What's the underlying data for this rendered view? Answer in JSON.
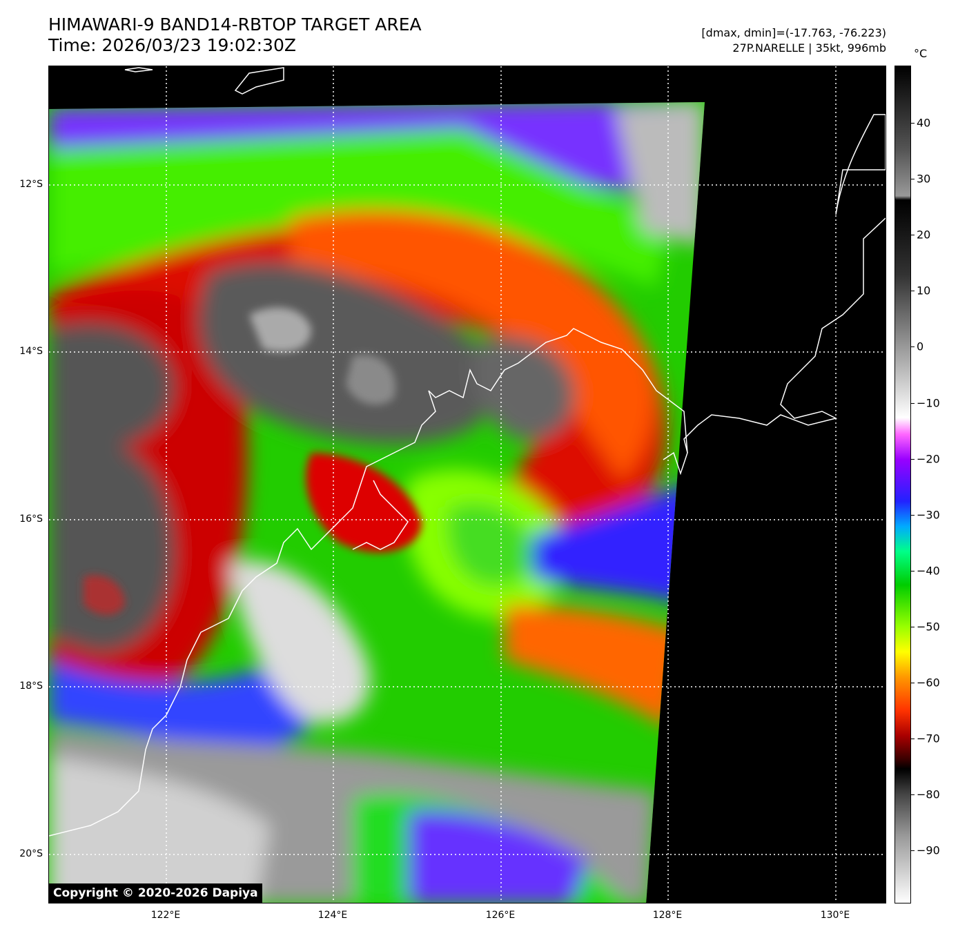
{
  "title": {
    "line1": "HIMAWARI-9 BAND14-RBTOP TARGET AREA",
    "line2": "Time: 2026/03/23 19:02:30Z"
  },
  "info": {
    "range": "[dmax, dmin]=(-17.763, -76.223)",
    "storm": "27P.NARELLE | 35kt, 996mb"
  },
  "map": {
    "lat_labels": [
      "12°S",
      "14°S",
      "16°S",
      "18°S",
      "20°S"
    ],
    "lon_labels": [
      "122°E",
      "124°E",
      "126°E",
      "128°E",
      "130°E"
    ],
    "copyright": "Copyright © 2020-2026 Dapiya"
  },
  "colorbar": {
    "unit": "°C",
    "labels": [
      "40",
      "30",
      "20",
      "10",
      "0",
      "−10",
      "−20",
      "−30",
      "−40",
      "−50",
      "−60",
      "−70",
      "−80",
      "−90"
    ]
  },
  "colors": {
    "cold_core": "#555555",
    "red_band": "#cc1100",
    "green_band": "#33dd00",
    "blue_band": "#2233ff",
    "coastline": "#ffffff"
  }
}
